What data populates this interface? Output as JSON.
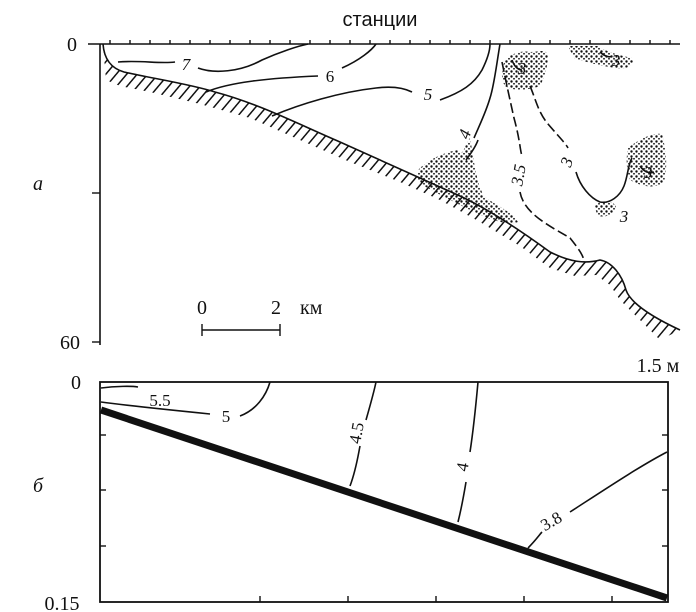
{
  "panel_a": {
    "letter": "а",
    "top_label": "станции",
    "y_top": "0",
    "y_bottom": "60",
    "scale": {
      "start": "0",
      "end": "2",
      "unit": "км"
    },
    "contours": [
      "7",
      "6",
      "5",
      "4",
      "3.5",
      "3",
      "3",
      "3",
      "3",
      "3"
    ]
  },
  "panel_b": {
    "letter": "б",
    "y_top": "0",
    "y_bottom": "0.15",
    "right_label": "1.5 м",
    "contours": [
      "5.5",
      "5",
      "4.5",
      "4",
      "3.8"
    ]
  }
}
